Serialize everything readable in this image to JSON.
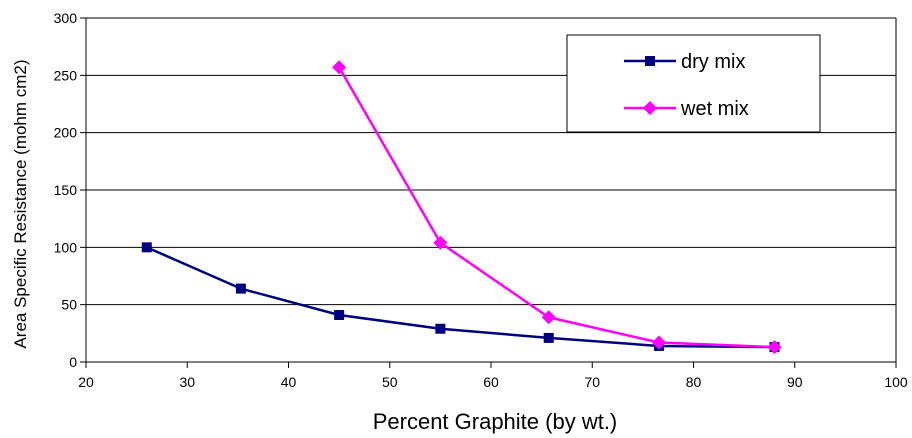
{
  "chart_data": {
    "type": "line",
    "title": "",
    "xlabel": "Percent Graphite (by wt.)",
    "ylabel": "Area Specific Resistance (mohm cm2)",
    "xlim": [
      20,
      100
    ],
    "ylim": [
      0,
      300
    ],
    "xticks": [
      20,
      30,
      40,
      50,
      60,
      70,
      80,
      90,
      100
    ],
    "yticks": [
      0,
      50,
      100,
      150,
      200,
      250,
      300
    ],
    "grid": "horizontal",
    "legend_position": "top-right",
    "series": [
      {
        "name": "dry mix",
        "color": "#000080",
        "marker": "square",
        "x": [
          26,
          35.3,
          45,
          55,
          65.7,
          76.6,
          88
        ],
        "y": [
          100,
          64,
          41,
          29,
          21,
          14,
          13
        ]
      },
      {
        "name": "wet mix",
        "color": "#ff00ff",
        "marker": "diamond",
        "x": [
          45,
          55,
          65.7,
          76.6,
          88
        ],
        "y": [
          257,
          104,
          39,
          17,
          13
        ]
      }
    ]
  }
}
